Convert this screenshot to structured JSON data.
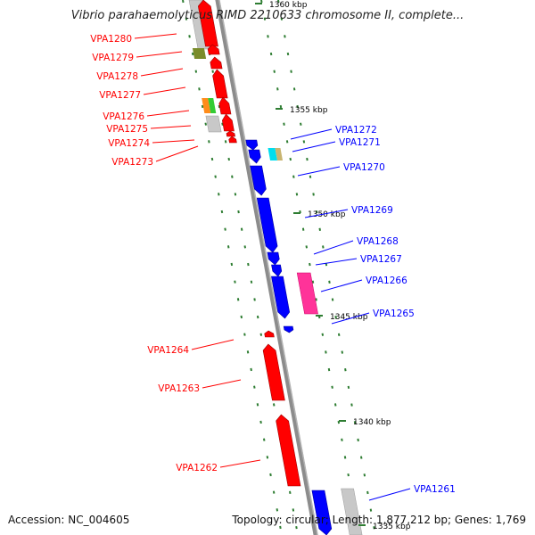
{
  "header": {
    "title": "Vibrio parahaemolyticus RIMD 2210633 chromosome II, complete..."
  },
  "footer": {
    "accession": "Accession: NC_004605",
    "summary": "Topology: circular; Length: 1,877,212 bp; Genes: 1,769"
  },
  "scale_labels": [
    {
      "text": "1360 kbp"
    },
    {
      "text": "1355 kbp"
    },
    {
      "text": "1350 kbp"
    },
    {
      "text": "1345 kbp"
    },
    {
      "text": "1340 kbp"
    },
    {
      "text": "1335 kbp"
    }
  ],
  "genes_reverse": [
    {
      "label": "VPA1280",
      "color": "#ff0000"
    },
    {
      "label": "VPA1279",
      "color": "#ff0000"
    },
    {
      "label": "VPA1278",
      "color": "#ff0000"
    },
    {
      "label": "VPA1277",
      "color": "#ff0000"
    },
    {
      "label": "VPA1276",
      "color": "#ff0000"
    },
    {
      "label": "VPA1275",
      "color": "#ff0000"
    },
    {
      "label": "VPA1274",
      "color": "#ff0000"
    },
    {
      "label": "VPA1273",
      "color": "#ff0000"
    },
    {
      "label": "VPA1264",
      "color": "#ff0000"
    },
    {
      "label": "VPA1263",
      "color": "#ff0000"
    },
    {
      "label": "VPA1262",
      "color": "#ff0000"
    }
  ],
  "genes_forward": [
    {
      "label": "VPA1272",
      "color": "#0000ff"
    },
    {
      "label": "VPA1271",
      "color": "#0000ff"
    },
    {
      "label": "VPA1270",
      "color": "#0000ff"
    },
    {
      "label": "VPA1269",
      "color": "#0000ff"
    },
    {
      "label": "VPA1268",
      "color": "#0000ff"
    },
    {
      "label": "VPA1267",
      "color": "#0000ff"
    },
    {
      "label": "VPA1266",
      "color": "#0000ff"
    },
    {
      "label": "VPA1265",
      "color": "#0000ff"
    },
    {
      "label": "VPA1261",
      "color": "#0000ff"
    }
  ],
  "colors": {
    "reverse_strand": "#ff0000",
    "forward_strand": "#0000ff",
    "backbone": "#8c8c8c",
    "tick_dots": "#2e7d32",
    "cog_olive": "#7a8c2a",
    "cog_orange": "#ff8c1a",
    "cog_green": "#33cc33",
    "cog_cyan": "#00ddee",
    "cog_tan": "#c8b470",
    "cog_magenta": "#ff3399",
    "cog_grey": "#c8c8c8"
  }
}
